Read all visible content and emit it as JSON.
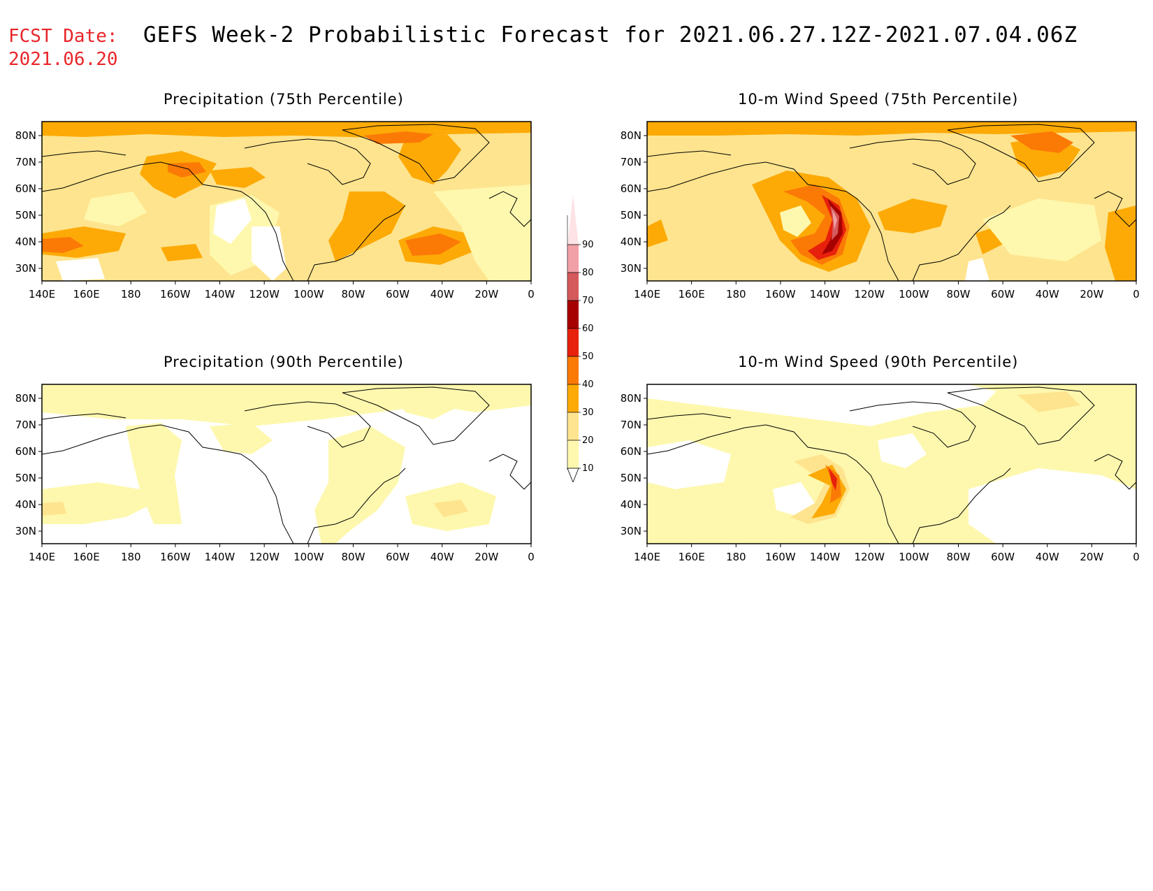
{
  "fcst_date": {
    "label": "FCST Date:",
    "value": "2021.06.20"
  },
  "title": "GEFS Week-2 Probabilistic Forecast for 2021.06.27.12Z-2021.07.04.06Z",
  "lat_labels": [
    "80N",
    "70N",
    "60N",
    "50N",
    "40N",
    "30N"
  ],
  "lon_labels": [
    "140E",
    "160E",
    "180",
    "160W",
    "140W",
    "120W",
    "100W",
    "80W",
    "60W",
    "40W",
    "20W",
    "0"
  ],
  "colorbar": {
    "levels": [
      "10",
      "20",
      "30",
      "40",
      "50",
      "60",
      "70",
      "80",
      "90"
    ],
    "colors": [
      "#fef8ae",
      "#fee48e",
      "#fdaa06",
      "#fb7a06",
      "#e7210c",
      "#a70000",
      "#d45a5c",
      "#f0a0a6",
      "#fde3e6"
    ]
  },
  "panels": [
    {
      "title": "Precipitation (75th Percentile)",
      "base": "#fee48e"
    },
    {
      "title": "10-m Wind Speed (75th Percentile)",
      "base": "#fee48e"
    },
    {
      "title": "Precipitation (90th Percentile)",
      "base": "#fef8ae"
    },
    {
      "title": "10-m Wind Speed (90th Percentile)",
      "base": "#fef8ae"
    }
  ]
}
